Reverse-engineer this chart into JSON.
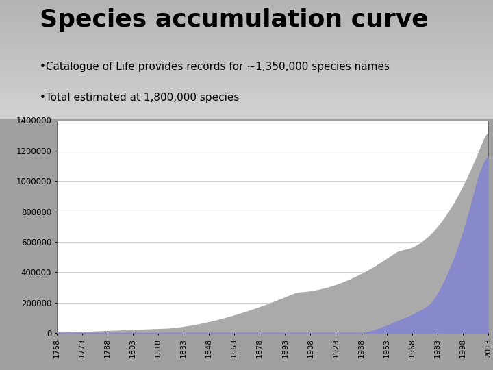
{
  "title": "Species accumulation curve",
  "bullet1": "•Catalogue of Life provides records for ~1,350,000 species names",
  "bullet2": "•Total estimated at 1,800,000 species",
  "title_fontsize": 26,
  "bullet_fontsize": 11,
  "chart_bg": "#ffffff",
  "fill_color_gray": "#aaaaaa",
  "fill_color_blue": "#8888cc",
  "ylim": [
    0,
    1400000
  ],
  "yticks": [
    0,
    200000,
    400000,
    600000,
    800000,
    1000000,
    1200000,
    1400000
  ],
  "year_start": 1758,
  "year_end": 2013,
  "xtick_years": [
    1758,
    1773,
    1788,
    1803,
    1818,
    1833,
    1848,
    1863,
    1878,
    1893,
    1908,
    1923,
    1938,
    1953,
    1968,
    1983,
    1998,
    2013
  ],
  "header_top_color": "#b8b8b8",
  "header_bottom_color": "#989898",
  "fig_bg": "#a0a0a0"
}
